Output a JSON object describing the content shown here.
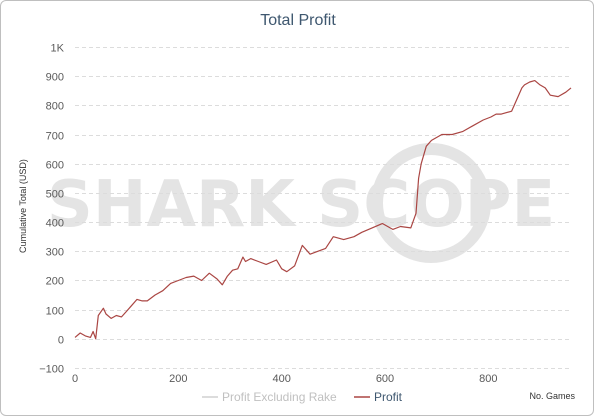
{
  "chart_data": {
    "type": "line",
    "title": "Total Profit",
    "xlabel": "No. Games",
    "ylabel": "Cumulative Total (USD)",
    "xlim": [
      0,
      960
    ],
    "ylim": [
      -100,
      1000
    ],
    "x_ticks": [
      "0",
      "200",
      "400",
      "600",
      "800"
    ],
    "y_ticks": [
      "−100",
      "0",
      "100",
      "200",
      "300",
      "400",
      "500",
      "600",
      "700",
      "800",
      "900",
      "1K"
    ],
    "grid": true,
    "legend_position": "bottom-center",
    "watermark": {
      "text": "SHARK SCOPE",
      "color": "#e4e4e4"
    },
    "series": [
      {
        "name": "Profit Excluding Rake",
        "color": "#d0d0d0",
        "x": [],
        "y": []
      },
      {
        "name": "Profit",
        "color": "#aa4643",
        "x": [
          0,
          10,
          20,
          30,
          35,
          40,
          45,
          55,
          60,
          70,
          80,
          90,
          100,
          110,
          120,
          130,
          140,
          155,
          170,
          185,
          200,
          215,
          230,
          245,
          260,
          275,
          285,
          295,
          305,
          315,
          325,
          330,
          340,
          355,
          370,
          390,
          400,
          410,
          425,
          440,
          455,
          470,
          485,
          500,
          520,
          540,
          555,
          575,
          595,
          615,
          630,
          650,
          660,
          665,
          670,
          680,
          690,
          710,
          730,
          750,
          770,
          790,
          805,
          815,
          825,
          845,
          865,
          870,
          880,
          890,
          900,
          910,
          920,
          935,
          950,
          960
        ],
        "y": [
          5,
          20,
          10,
          5,
          25,
          0,
          80,
          105,
          85,
          70,
          80,
          75,
          95,
          115,
          135,
          130,
          130,
          150,
          165,
          190,
          200,
          210,
          215,
          200,
          225,
          205,
          185,
          215,
          235,
          240,
          280,
          265,
          275,
          265,
          255,
          270,
          240,
          230,
          250,
          320,
          290,
          300,
          310,
          350,
          340,
          350,
          365,
          380,
          395,
          375,
          385,
          380,
          430,
          550,
          600,
          660,
          680,
          700,
          700,
          710,
          730,
          750,
          760,
          770,
          770,
          780,
          860,
          870,
          880,
          885,
          870,
          860,
          835,
          830,
          845,
          860
        ]
      }
    ]
  }
}
